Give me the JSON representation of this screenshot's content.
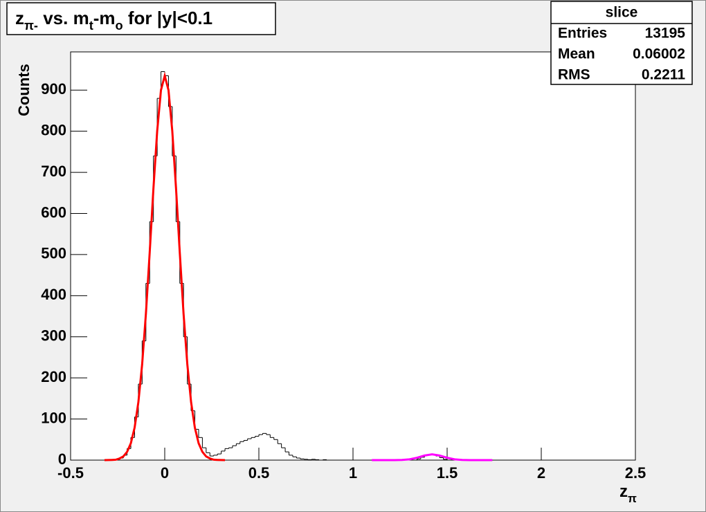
{
  "chart_data": {
    "type": "histogram",
    "title": [
      {
        "text": "z"
      },
      {
        "text": "π-",
        "sub": true
      },
      {
        "text": " vs. m"
      },
      {
        "text": "t",
        "sub": true
      },
      {
        "text": "-m"
      },
      {
        "text": "o",
        "sub": true
      },
      {
        "text": " for |y|<0.1"
      }
    ],
    "x_label": [
      {
        "text": "z"
      },
      {
        "text": "π",
        "sub": true
      }
    ],
    "y_label": "Counts",
    "bins": [
      -0.5,
      -0.3,
      -0.28,
      -0.26,
      -0.24,
      -0.22,
      -0.2,
      -0.18,
      -0.16,
      -0.14,
      -0.12,
      -0.1,
      -0.08,
      -0.06,
      -0.04,
      -0.02,
      0,
      0.02,
      0.04,
      0.06,
      0.08,
      0.1,
      0.12,
      0.14,
      0.16,
      0.18,
      0.2,
      0.22,
      0.24,
      0.26,
      0.28,
      0.3,
      0.32,
      0.34,
      0.36,
      0.38,
      0.4,
      0.42,
      0.44,
      0.46,
      0.48,
      0.5,
      0.52,
      0.54,
      0.56,
      0.58,
      0.6,
      0.62,
      0.64,
      0.66,
      0.68,
      0.7,
      0.72,
      0.74,
      0.76,
      0.78,
      0.8,
      0.82,
      0.84,
      0.86,
      0.88,
      0.9,
      1.34,
      1.36,
      1.38,
      1.4,
      1.42,
      1.44,
      1.46,
      1.48,
      1.5,
      2.5
    ],
    "counts": [
      0,
      0,
      1,
      2,
      5,
      12,
      28,
      55,
      105,
      185,
      290,
      430,
      580,
      740,
      880,
      945,
      935,
      860,
      740,
      580,
      430,
      300,
      185,
      120,
      75,
      55,
      30,
      18,
      10,
      12,
      15,
      22,
      28,
      30,
      35,
      40,
      45,
      48,
      52,
      55,
      58,
      62,
      65,
      62,
      55,
      50,
      40,
      30,
      20,
      12,
      8,
      5,
      3,
      2,
      1,
      2,
      1,
      0,
      1,
      0,
      0,
      0,
      3,
      7,
      11,
      14,
      13,
      10,
      6,
      2,
      0
    ],
    "color": "#000000",
    "fits": [
      {
        "color": "#ff0000",
        "x": [
          -0.32,
          -0.3,
          -0.28,
          -0.26,
          -0.24,
          -0.22,
          -0.2,
          -0.18,
          -0.16,
          -0.14,
          -0.12,
          -0.1,
          -0.08,
          -0.06,
          -0.04,
          -0.02,
          0,
          0.02,
          0.04,
          0.06,
          0.08,
          0.1,
          0.12,
          0.14,
          0.16,
          0.18,
          0.2,
          0.22,
          0.24,
          0.26,
          0.28,
          0.3,
          0.32
        ],
        "values": [
          0,
          0.2,
          0.5,
          1,
          4,
          9,
          20,
          41,
          79,
          141,
          233,
          356,
          504,
          661,
          801,
          900,
          935,
          900,
          801,
          661,
          504,
          356,
          233,
          141,
          79,
          41,
          20,
          9,
          4,
          1,
          0.5,
          0.2,
          0
        ]
      },
      {
        "color": "#ff00ff",
        "x": [
          1.1,
          1.14,
          1.18,
          1.22,
          1.26,
          1.3,
          1.34,
          1.38,
          1.42,
          1.46,
          1.5,
          1.54,
          1.58,
          1.62,
          1.66,
          1.7,
          1.74
        ],
        "values": [
          0,
          0,
          0,
          0.05,
          0.4,
          1.9,
          5.8,
          11.2,
          14,
          11.2,
          5.8,
          1.9,
          0.4,
          0.05,
          0,
          0,
          0
        ]
      }
    ],
    "xlim": [
      -0.5,
      2.5
    ],
    "xticks": [
      -0.5,
      0,
      0.5,
      1,
      1.5,
      2,
      2.5
    ],
    "ylim": [
      0,
      993
    ],
    "yticks": [
      0,
      100,
      200,
      300,
      400,
      500,
      600,
      700,
      800,
      900
    ],
    "stats": {
      "title": "slice",
      "rows": [
        {
          "label": "Entries",
          "value": 13195
        },
        {
          "label": "Mean",
          "value": 0.06002
        },
        {
          "label": "RMS",
          "value": 0.2211
        }
      ]
    }
  }
}
